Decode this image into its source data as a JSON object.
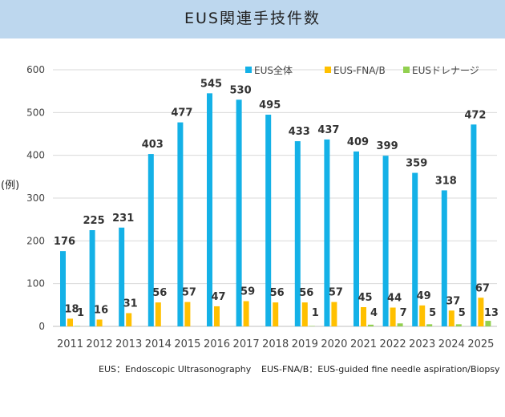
{
  "title": "EUS関連手技件数",
  "unit_label": "(例)",
  "footnotes": [
    "EUS：Endoscopic Ultrasonography",
    "EUS-FNA/B：EUS-guided fine needle aspiration/Biopsy"
  ],
  "chart_data": {
    "type": "bar",
    "categories": [
      "2011",
      "2012",
      "2013",
      "2014",
      "2015",
      "2016",
      "2017",
      "2018",
      "2019",
      "2020",
      "2021",
      "2022",
      "2023",
      "2024",
      "2025"
    ],
    "series": [
      {
        "name": "EUS全体",
        "color": "#14b1e7",
        "values": [
          176,
          225,
          231,
          403,
          477,
          545,
          530,
          495,
          433,
          437,
          409,
          399,
          359,
          318,
          472
        ]
      },
      {
        "name": "EUS-FNA/B",
        "color": "#ffc000",
        "values": [
          18,
          16,
          31,
          56,
          57,
          47,
          59,
          56,
          56,
          57,
          45,
          44,
          49,
          37,
          67
        ]
      },
      {
        "name": "EUSドレナージ",
        "color": "#92d050",
        "values": [
          1,
          0,
          0,
          0,
          0,
          0,
          0,
          0,
          1,
          0,
          4,
          7,
          5,
          5,
          13
        ]
      }
    ],
    "data_labels": [
      [
        "176",
        "225",
        "231",
        "403",
        "477",
        "545",
        "530",
        "495",
        "433",
        "437",
        "409",
        "399",
        "359",
        "318",
        "472"
      ],
      [
        "18",
        "16",
        "31",
        "56",
        "57",
        "47",
        "59",
        "56",
        "56",
        "57",
        "45",
        "44",
        "49",
        "37",
        "67"
      ],
      [
        "1",
        "",
        "",
        "",
        "",
        "",
        "",
        "",
        "1",
        "",
        "4",
        "7",
        "5",
        "5",
        "13"
      ]
    ],
    "ylim": [
      0,
      600
    ],
    "yticks": [
      "0",
      "100",
      "200",
      "300",
      "400",
      "500",
      "600"
    ],
    "grid": true,
    "legend_position": "top-right"
  }
}
